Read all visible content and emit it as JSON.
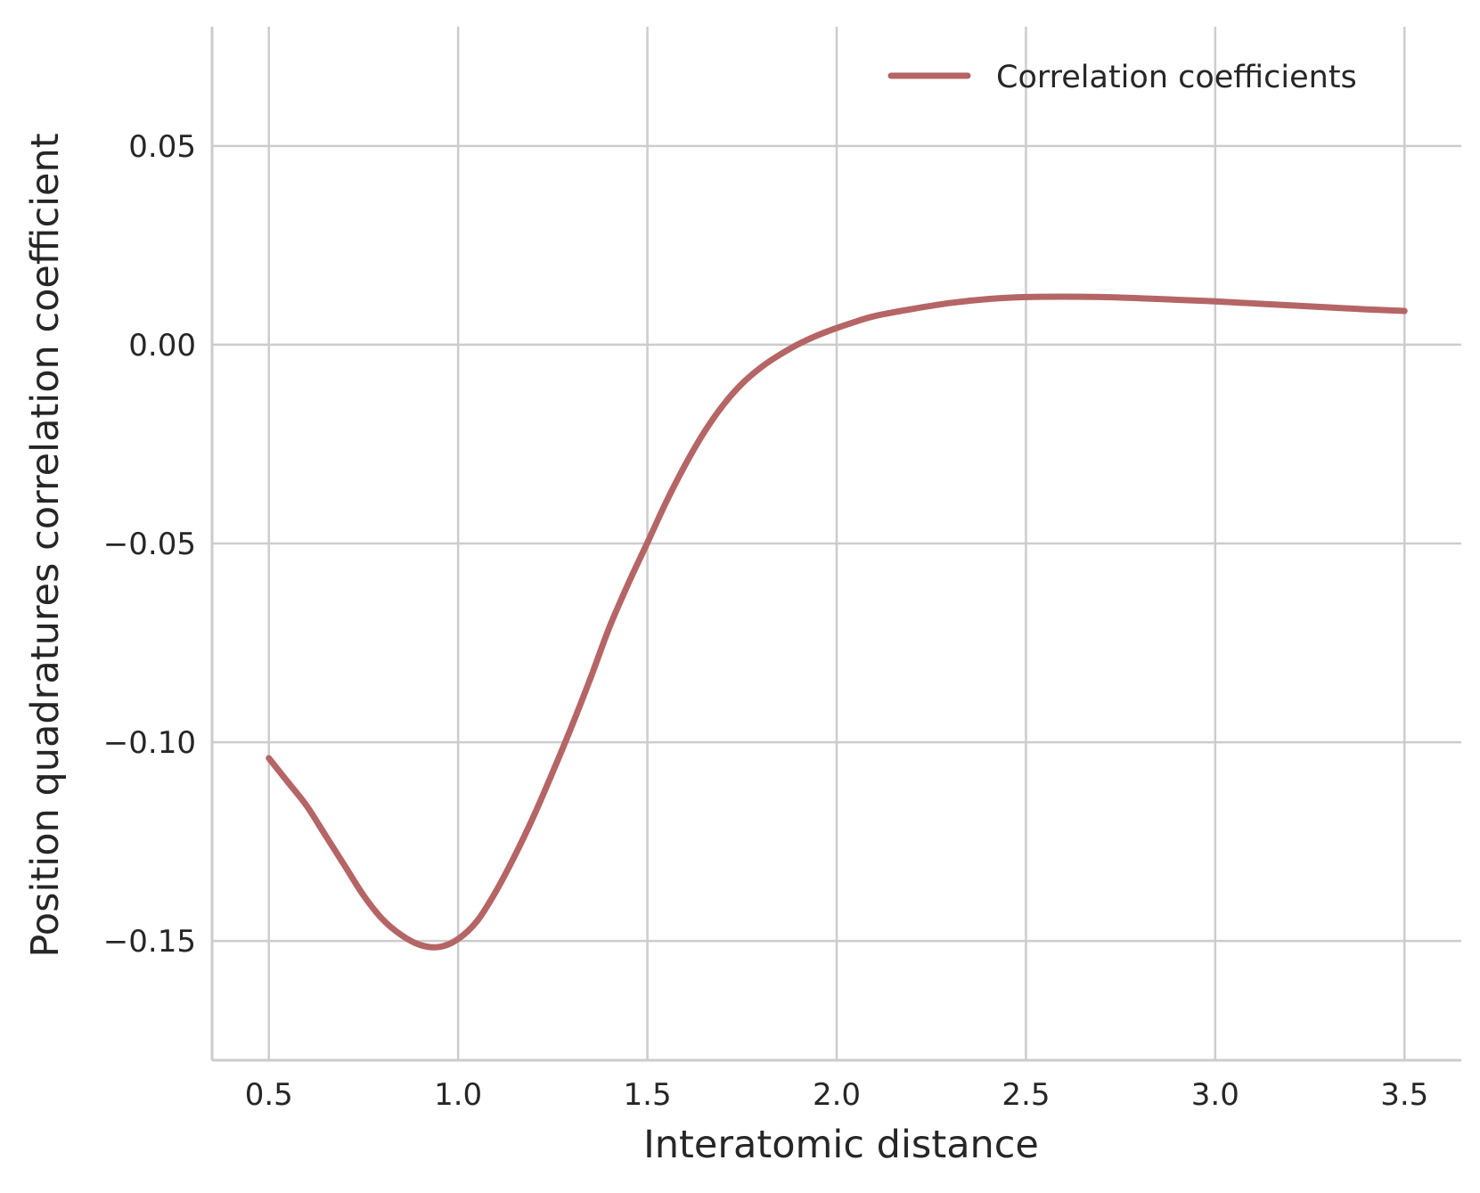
{
  "chart_data": {
    "type": "line",
    "title": "",
    "xlabel": "Interatomic distance",
    "ylabel": "Position quadratures correlation coefficient",
    "xlim": [
      0.35,
      3.65
    ],
    "ylim": [
      -0.18,
      0.08
    ],
    "xticks": [
      0.5,
      1.0,
      1.5,
      2.0,
      2.5,
      3.0,
      3.5
    ],
    "xtick_labels": [
      "0.5",
      "1.0",
      "1.5",
      "2.0",
      "2.5",
      "3.0",
      "3.5"
    ],
    "yticks": [
      0.05,
      0.0,
      -0.05,
      -0.1,
      -0.15
    ],
    "ytick_labels": [
      "0.05",
      "0.00",
      "−0.05",
      "−0.10",
      "−0.15"
    ],
    "grid": true,
    "legend_position": "top-right",
    "series": [
      {
        "name": "Correlation coefficients",
        "color": "#b56565",
        "x": [
          0.5,
          0.55,
          0.6,
          0.65,
          0.7,
          0.75,
          0.8,
          0.85,
          0.9,
          0.95,
          1.0,
          1.05,
          1.1,
          1.15,
          1.2,
          1.25,
          1.3,
          1.35,
          1.4,
          1.45,
          1.5,
          1.55,
          1.6,
          1.65,
          1.7,
          1.75,
          1.8,
          1.85,
          1.9,
          1.95,
          2.0,
          2.05,
          2.1,
          2.2,
          2.3,
          2.4,
          2.5,
          2.6,
          2.7,
          2.8,
          2.9,
          3.0,
          3.1,
          3.2,
          3.3,
          3.4,
          3.5
        ],
        "y": [
          -0.104,
          -0.11,
          -0.116,
          -0.1235,
          -0.131,
          -0.1385,
          -0.1445,
          -0.1485,
          -0.151,
          -0.1515,
          -0.1495,
          -0.145,
          -0.1375,
          -0.1285,
          -0.1185,
          -0.1075,
          -0.096,
          -0.0838,
          -0.071,
          -0.06,
          -0.0498,
          -0.0395,
          -0.0302,
          -0.022,
          -0.0152,
          -0.0098,
          -0.0057,
          -0.0025,
          0.0002,
          0.0024,
          0.0042,
          0.0058,
          0.0072,
          0.009,
          0.0105,
          0.0115,
          0.012,
          0.0121,
          0.012,
          0.0117,
          0.0113,
          0.0109,
          0.0104,
          0.0099,
          0.0094,
          0.0089,
          0.0085
        ]
      }
    ]
  }
}
